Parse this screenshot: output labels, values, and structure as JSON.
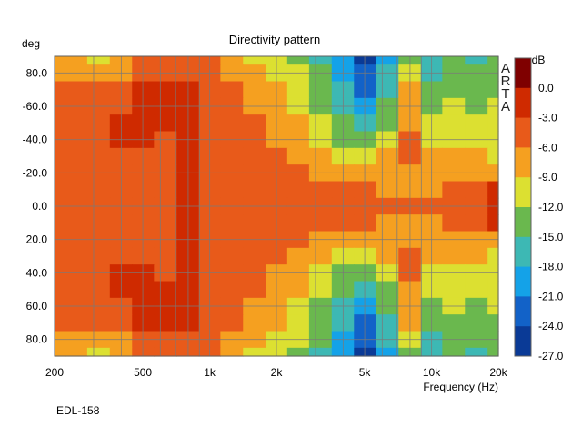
{
  "chart_data": {
    "type": "heatmap",
    "title": "Directivity pattern",
    "ylabel": "deg",
    "xlabel": "Frequency (Hz)",
    "footer": "EDL-158",
    "brand": "ARTA",
    "x_scale": "log",
    "xlim": [
      200,
      20000
    ],
    "ylim": [
      -90,
      90
    ],
    "x_ticks": [
      {
        "value": 200,
        "label": "200"
      },
      {
        "value": 500,
        "label": "500"
      },
      {
        "value": 1000,
        "label": "1k"
      },
      {
        "value": 2000,
        "label": "2k"
      },
      {
        "value": 5000,
        "label": "5k"
      },
      {
        "value": 10000,
        "label": "10k"
      },
      {
        "value": 20000,
        "label": "20k"
      }
    ],
    "y_ticks": [
      {
        "value": -80,
        "label": "-80.0"
      },
      {
        "value": -60,
        "label": "-60.0"
      },
      {
        "value": -40,
        "label": "-40.0"
      },
      {
        "value": -20,
        "label": "-20.0"
      },
      {
        "value": 0,
        "label": "0.0"
      },
      {
        "value": 20,
        "label": "20.0"
      },
      {
        "value": 40,
        "label": "40.0"
      },
      {
        "value": 60,
        "label": "60.0"
      },
      {
        "value": 80,
        "label": "80.0"
      }
    ],
    "grid": true,
    "colorbar": {
      "unit": "dB",
      "levels": [
        {
          "label": "0.0",
          "color": "#7f0000"
        },
        {
          "label": "-3.0",
          "color": "#cf2a00"
        },
        {
          "label": "-6.0",
          "color": "#e85a1a"
        },
        {
          "label": "-9.0",
          "color": "#f5a020"
        },
        {
          "label": "-12.0",
          "color": "#dce031"
        },
        {
          "label": "-15.0",
          "color": "#6ab84e"
        },
        {
          "label": "-18.0",
          "color": "#3db8b4"
        },
        {
          "label": "-21.0",
          "color": "#14a2e8"
        },
        {
          "label": "-24.0",
          "color": "#1262c8"
        },
        {
          "label": "-27.0",
          "color": "#0a3a96"
        }
      ]
    },
    "frequencies": [
      200,
      250,
      315,
      400,
      500,
      630,
      800,
      1000,
      1250,
      1600,
      2000,
      2500,
      3150,
      4000,
      5000,
      6300,
      8000,
      10000,
      12500,
      16000,
      20000
    ],
    "angles": [
      -90,
      -80,
      -70,
      -60,
      -50,
      -40,
      -30,
      -20,
      -10,
      0,
      10,
      20,
      30,
      40,
      50,
      60,
      70,
      80,
      90
    ],
    "values": [
      [
        -7,
        -8,
        -9,
        -7,
        -5,
        -4,
        -3,
        -5,
        -7,
        -9,
        -10,
        -12,
        -15,
        -20,
        -24,
        -18,
        -12,
        -16,
        -14,
        -16,
        -14
      ],
      [
        -6,
        -7,
        -8,
        -6,
        -4,
        -3,
        -3,
        -4,
        -6,
        -8,
        -9,
        -11,
        -14,
        -19,
        -23,
        -17,
        -11,
        -15,
        -13,
        -14,
        -13
      ],
      [
        -5,
        -5,
        -5,
        -4,
        -2,
        -1,
        -1,
        -3,
        -5,
        -7,
        -8,
        -10,
        -13,
        -17,
        -21,
        -15,
        -8,
        -13,
        -12,
        -13,
        -12
      ],
      [
        -4,
        -4,
        -4,
        -3,
        -1,
        -1,
        -1,
        -3,
        -4,
        -6,
        -7,
        -9,
        -12,
        -16,
        -19,
        -13,
        -7,
        -12,
        -11,
        -12,
        -11
      ],
      [
        -4,
        -4,
        -4,
        -2,
        -1,
        -2,
        -1,
        -3,
        -4,
        -5,
        -6,
        -8,
        -11,
        -14,
        -17,
        -12,
        -6,
        -11,
        -10,
        -11,
        -10
      ],
      [
        -4,
        -4,
        -4,
        -1,
        -2,
        -3,
        -1,
        -3,
        -4,
        -5,
        -6,
        -7,
        -9,
        -12,
        -14,
        -10,
        -5,
        -9,
        -10,
        -10,
        -10
      ],
      [
        -4,
        -4,
        -4,
        -3,
        -4,
        -4,
        -1,
        -3,
        -4,
        -5,
        -5,
        -6,
        -7,
        -9,
        -11,
        -8,
        -5,
        -7,
        -8,
        -8,
        -9
      ],
      [
        -4,
        -4,
        -4,
        -4,
        -4,
        -4,
        -1,
        -3,
        -4,
        -4,
        -5,
        -5,
        -6,
        -7,
        -8,
        -7,
        -6,
        -7,
        -7,
        -6,
        -6
      ],
      [
        -4,
        -4,
        -4,
        -4,
        -4,
        -4,
        -1,
        -3,
        -3,
        -4,
        -4,
        -4,
        -5,
        -5,
        -5,
        -6,
        -6,
        -6,
        -5,
        -4,
        -2
      ],
      [
        -4,
        -4,
        -4,
        -4,
        -4,
        -4,
        -1,
        -3,
        -3,
        -4,
        -4,
        -4,
        -4,
        -4,
        -4,
        -5,
        -5,
        -4,
        -4,
        -3,
        -1
      ],
      [
        -4,
        -4,
        -4,
        -4,
        -4,
        -4,
        -1,
        -3,
        -3,
        -4,
        -4,
        -4,
        -5,
        -5,
        -5,
        -6,
        -6,
        -6,
        -5,
        -4,
        -2
      ],
      [
        -4,
        -4,
        -4,
        -4,
        -4,
        -4,
        -1,
        -3,
        -4,
        -4,
        -5,
        -5,
        -6,
        -7,
        -8,
        -7,
        -6,
        -7,
        -7,
        -6,
        -6
      ],
      [
        -4,
        -4,
        -4,
        -3,
        -4,
        -4,
        -1,
        -3,
        -4,
        -5,
        -5,
        -6,
        -7,
        -9,
        -11,
        -8,
        -5,
        -7,
        -8,
        -8,
        -9
      ],
      [
        -4,
        -4,
        -4,
        -1,
        -2,
        -3,
        -1,
        -3,
        -4,
        -5,
        -6,
        -7,
        -9,
        -12,
        -14,
        -10,
        -5,
        -9,
        -10,
        -10,
        -10
      ],
      [
        -4,
        -4,
        -4,
        -2,
        -1,
        -2,
        -1,
        -3,
        -4,
        -5,
        -6,
        -8,
        -11,
        -14,
        -17,
        -12,
        -6,
        -11,
        -10,
        -11,
        -10
      ],
      [
        -4,
        -4,
        -4,
        -3,
        -1,
        -1,
        -1,
        -3,
        -4,
        -6,
        -7,
        -9,
        -12,
        -16,
        -19,
        -13,
        -7,
        -12,
        -11,
        -12,
        -11
      ],
      [
        -5,
        -5,
        -5,
        -4,
        -2,
        -1,
        -1,
        -3,
        -5,
        -7,
        -8,
        -10,
        -13,
        -17,
        -21,
        -15,
        -8,
        -13,
        -12,
        -13,
        -12
      ],
      [
        -6,
        -7,
        -8,
        -6,
        -4,
        -3,
        -3,
        -4,
        -6,
        -8,
        -9,
        -11,
        -14,
        -19,
        -23,
        -17,
        -11,
        -15,
        -13,
        -14,
        -13
      ],
      [
        -7,
        -8,
        -9,
        -7,
        -5,
        -4,
        -3,
        -5,
        -7,
        -9,
        -10,
        -12,
        -15,
        -20,
        -24,
        -18,
        -12,
        -16,
        -14,
        -16,
        -14
      ]
    ]
  }
}
